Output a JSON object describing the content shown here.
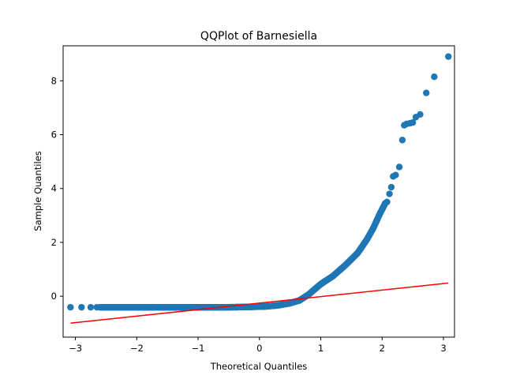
{
  "chart_data": {
    "type": "scatter",
    "title": "QQPlot of Barnesiella",
    "xlabel": "Theoretical Quantiles",
    "ylabel": "Sample Quantiles",
    "xlim": [
      -3.2,
      3.18
    ],
    "ylim": [
      -1.52,
      9.3
    ],
    "xticks": [
      -3,
      -2,
      -1,
      0,
      1,
      2,
      3
    ],
    "yticks": [
      0,
      2,
      4,
      6,
      8
    ],
    "grid": false,
    "colors": {
      "points": "#1f77b4",
      "line": "#ff0000"
    },
    "reference_line": {
      "x": [
        -3.08,
        3.08
      ],
      "y": [
        -1.0,
        0.49
      ]
    },
    "curve_knots": [
      [
        -2.8,
        -0.41
      ],
      [
        -2.0,
        -0.41
      ],
      [
        -1.0,
        -0.41
      ],
      [
        -0.5,
        -0.41
      ],
      [
        -0.2,
        -0.4
      ],
      [
        0.1,
        -0.38
      ],
      [
        0.3,
        -0.34
      ],
      [
        0.5,
        -0.26
      ],
      [
        0.65,
        -0.16
      ],
      [
        0.8,
        0.06
      ],
      [
        1.0,
        0.45
      ],
      [
        1.2,
        0.75
      ],
      [
        1.4,
        1.15
      ],
      [
        1.6,
        1.6
      ],
      [
        1.75,
        2.1
      ],
      [
        1.85,
        2.5
      ],
      [
        1.95,
        3.0
      ],
      [
        2.05,
        3.45
      ]
    ],
    "points": [
      [
        -3.08,
        -0.41
      ],
      [
        -2.9,
        -0.41
      ],
      [
        -2.75,
        -0.41
      ],
      [
        -2.65,
        -0.41
      ],
      [
        2.08,
        3.5
      ],
      [
        2.12,
        3.8
      ],
      [
        2.15,
        4.05
      ],
      [
        2.18,
        4.45
      ],
      [
        2.22,
        4.5
      ],
      [
        2.28,
        4.8
      ],
      [
        2.33,
        5.8
      ],
      [
        2.36,
        6.35
      ],
      [
        2.4,
        6.4
      ],
      [
        2.45,
        6.42
      ],
      [
        2.5,
        6.45
      ],
      [
        2.55,
        6.65
      ],
      [
        2.62,
        6.75
      ],
      [
        2.72,
        7.55
      ],
      [
        2.85,
        8.15
      ],
      [
        3.08,
        8.9
      ]
    ],
    "dense_count": 520
  }
}
